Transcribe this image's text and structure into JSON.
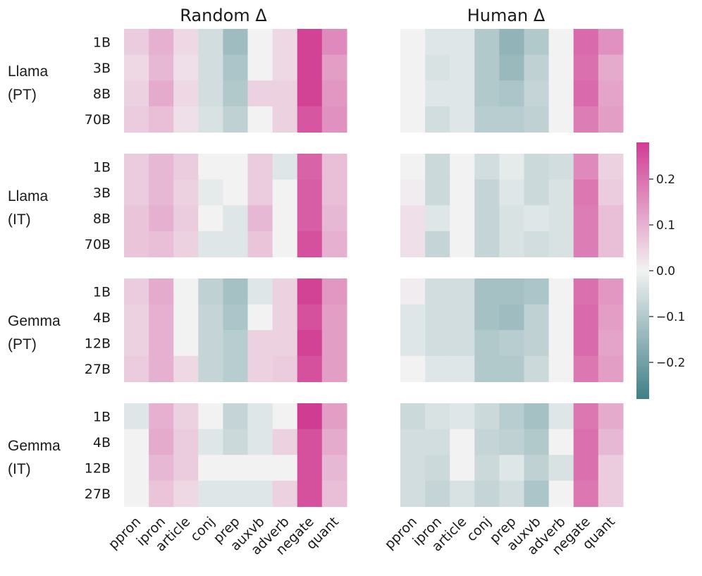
{
  "chart_data": {
    "type": "heatmap",
    "panels": [
      {
        "title": "Random Δ"
      },
      {
        "title": "Human Δ"
      }
    ],
    "columns": [
      "ppron",
      "ipron",
      "article",
      "conj",
      "prep",
      "auxvb",
      "adverb",
      "negate",
      "quant"
    ],
    "groups": [
      {
        "label_line1": "Llama",
        "label_line2": "(PT)",
        "rows": [
          "1B",
          "3B",
          "8B",
          "70B"
        ],
        "random": [
          [
            0.06,
            0.1,
            0.04,
            -0.05,
            -0.13,
            0.0,
            0.04,
            0.27,
            0.16
          ],
          [
            0.04,
            0.09,
            0.03,
            -0.05,
            -0.11,
            0.0,
            0.04,
            0.27,
            0.13
          ],
          [
            0.05,
            0.11,
            0.04,
            -0.05,
            -0.1,
            0.05,
            0.05,
            0.27,
            0.14
          ],
          [
            0.06,
            0.08,
            0.03,
            -0.04,
            -0.08,
            0.0,
            0.05,
            0.24,
            0.15
          ]
        ],
        "human": [
          [
            0.0,
            -0.03,
            -0.03,
            -0.1,
            -0.15,
            -0.1,
            0.0,
            0.21,
            0.15
          ],
          [
            0.0,
            -0.04,
            -0.03,
            -0.1,
            -0.14,
            -0.08,
            0.0,
            0.2,
            0.11
          ],
          [
            0.0,
            -0.03,
            -0.03,
            -0.1,
            -0.11,
            -0.07,
            0.0,
            0.21,
            0.12
          ],
          [
            0.0,
            -0.05,
            -0.03,
            -0.09,
            -0.09,
            -0.08,
            0.0,
            0.18,
            0.13
          ]
        ]
      },
      {
        "label_line1": "Llama",
        "label_line2": "(IT)",
        "rows": [
          "1B",
          "3B",
          "8B",
          "70B"
        ],
        "random": [
          [
            0.06,
            0.09,
            0.06,
            0.0,
            0.0,
            0.06,
            -0.03,
            0.22,
            0.08
          ],
          [
            0.06,
            0.09,
            0.05,
            -0.02,
            0.0,
            0.06,
            0.0,
            0.23,
            0.08
          ],
          [
            0.07,
            0.1,
            0.06,
            0.0,
            -0.03,
            0.09,
            0.0,
            0.23,
            0.09
          ],
          [
            0.07,
            0.08,
            0.05,
            -0.03,
            -0.03,
            0.07,
            0.0,
            0.25,
            0.1
          ]
        ],
        "human": [
          [
            0.0,
            -0.06,
            0.0,
            -0.05,
            -0.02,
            -0.06,
            -0.05,
            0.16,
            0.05
          ],
          [
            0.01,
            -0.06,
            0.0,
            -0.07,
            -0.03,
            -0.06,
            -0.04,
            0.19,
            0.06
          ],
          [
            0.03,
            -0.03,
            0.0,
            -0.07,
            -0.04,
            -0.03,
            -0.04,
            0.18,
            0.08
          ],
          [
            0.03,
            -0.07,
            0.0,
            -0.07,
            -0.04,
            -0.05,
            -0.04,
            0.18,
            0.08
          ]
        ]
      },
      {
        "label_line1": "Gemma",
        "label_line2": "(PT)",
        "rows": [
          "1B",
          "4B",
          "12B",
          "27B"
        ],
        "random": [
          [
            0.06,
            0.11,
            0.0,
            -0.08,
            -0.12,
            -0.03,
            0.05,
            0.27,
            0.14
          ],
          [
            0.05,
            0.1,
            0.0,
            -0.07,
            -0.11,
            0.0,
            0.05,
            0.25,
            0.13
          ],
          [
            0.05,
            0.1,
            0.0,
            -0.07,
            -0.09,
            0.05,
            0.05,
            0.27,
            0.13
          ],
          [
            0.06,
            0.1,
            0.04,
            -0.07,
            -0.09,
            0.05,
            0.06,
            0.25,
            0.13
          ]
        ],
        "human": [
          [
            0.01,
            -0.05,
            -0.05,
            -0.12,
            -0.12,
            -0.11,
            0.0,
            0.2,
            0.14
          ],
          [
            -0.03,
            -0.05,
            -0.05,
            -0.12,
            -0.13,
            -0.08,
            0.0,
            0.21,
            0.13
          ],
          [
            -0.03,
            -0.05,
            -0.05,
            -0.1,
            -0.09,
            -0.08,
            0.0,
            0.21,
            0.12
          ],
          [
            0.0,
            -0.03,
            -0.03,
            -0.1,
            -0.1,
            -0.06,
            0.0,
            0.19,
            0.13
          ]
        ]
      },
      {
        "label_line1": "Gemma",
        "label_line2": "(IT)",
        "rows": [
          "1B",
          "4B",
          "12B",
          "27B"
        ],
        "random": [
          [
            -0.03,
            0.1,
            0.05,
            0.0,
            -0.07,
            -0.03,
            0.0,
            0.28,
            0.13
          ],
          [
            0.0,
            0.11,
            0.06,
            -0.03,
            -0.06,
            -0.03,
            0.05,
            0.25,
            0.11
          ],
          [
            0.0,
            0.09,
            0.06,
            0.0,
            0.0,
            0.0,
            0.0,
            0.25,
            0.09
          ],
          [
            0.0,
            0.07,
            0.04,
            -0.03,
            -0.03,
            -0.03,
            0.05,
            0.25,
            0.08
          ]
        ],
        "human": [
          [
            -0.06,
            -0.04,
            -0.03,
            -0.06,
            -0.09,
            -0.12,
            -0.03,
            0.19,
            0.11
          ],
          [
            -0.05,
            -0.05,
            0.0,
            -0.07,
            -0.08,
            -0.1,
            0.0,
            0.2,
            0.09
          ],
          [
            -0.05,
            -0.06,
            0.0,
            -0.06,
            -0.03,
            -0.08,
            -0.04,
            0.2,
            0.06
          ],
          [
            -0.05,
            -0.07,
            -0.04,
            -0.07,
            -0.05,
            -0.11,
            0.0,
            0.19,
            0.06
          ]
        ]
      }
    ],
    "colorbar": {
      "min": -0.28,
      "max": 0.28,
      "ticks": [
        0.2,
        0.1,
        0.0,
        -0.1,
        -0.2
      ],
      "tick_labels": [
        "0.2",
        "0.1",
        "0.0",
        "−0.1",
        "−0.2"
      ],
      "colors": {
        "negative": "#3f7f87",
        "center": "#f2f2f2",
        "positive": "#d13c93"
      }
    }
  }
}
